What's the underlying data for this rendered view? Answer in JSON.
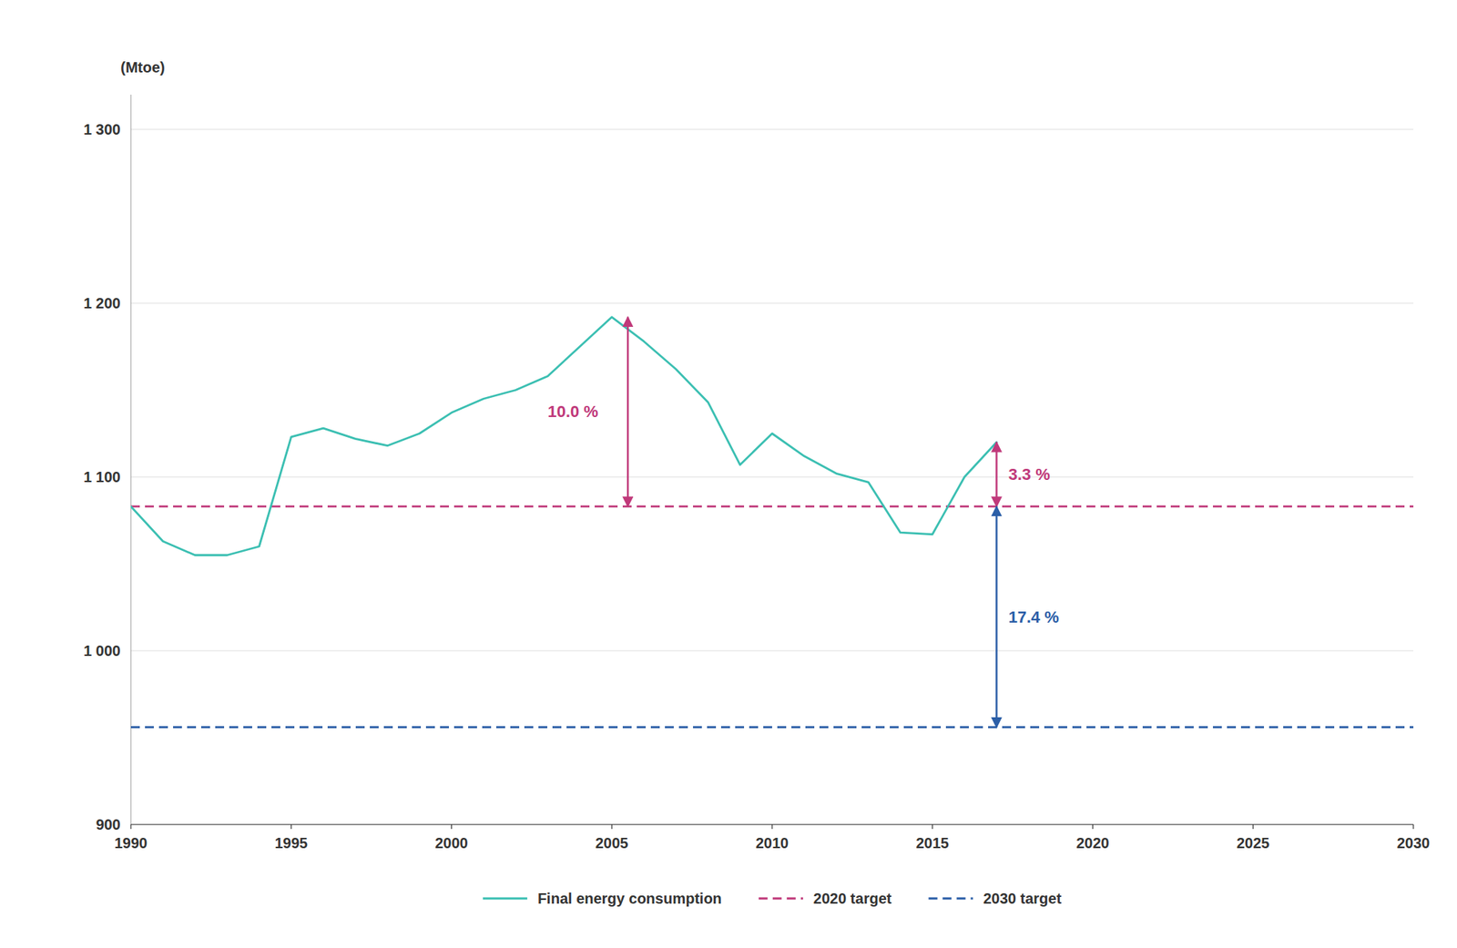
{
  "chart_data": {
    "type": "line",
    "y_label": "(Mtoe)",
    "x": [
      1990,
      1991,
      1992,
      1993,
      1994,
      1995,
      1996,
      1997,
      1998,
      1999,
      2000,
      2001,
      2002,
      2003,
      2004,
      2005,
      2006,
      2007,
      2008,
      2009,
      2010,
      2011,
      2012,
      2013,
      2014,
      2015,
      2016,
      2017
    ],
    "series": [
      {
        "name": "Final energy consumption",
        "color": "#3BBFB2",
        "line_style": "solid",
        "values": [
          1083,
          1063,
          1055,
          1055,
          1060,
          1123,
          1128,
          1122,
          1118,
          1125,
          1137,
          1145,
          1150,
          1158,
          1175,
          1192,
          1178,
          1162,
          1143,
          1107,
          1125,
          1112,
          1102,
          1097,
          1068,
          1067,
          1100,
          1120
        ]
      }
    ],
    "reference_lines": [
      {
        "name": "2020 target",
        "value": 1083,
        "color": "#C0397A",
        "line_style": "dashed"
      },
      {
        "name": "2030 target",
        "value": 956,
        "color": "#2B5EA7",
        "line_style": "dashed"
      }
    ],
    "annotations": [
      {
        "text": "10.0 %",
        "x": 2005.5,
        "y_top": 1192,
        "y_bottom": 1083,
        "color": "#C0397A"
      },
      {
        "text": "3.3 %",
        "x": 2017,
        "y_top": 1120,
        "y_bottom": 1083,
        "color": "#C0397A"
      },
      {
        "text": "17.4 %",
        "x": 2017,
        "y_top": 1083,
        "y_bottom": 956,
        "color": "#2B5EA7"
      }
    ],
    "xlim": [
      1990,
      2030
    ],
    "xticks": [
      1990,
      1995,
      2000,
      2005,
      2010,
      2015,
      2020,
      2025,
      2030
    ],
    "ylim": [
      900,
      1320
    ],
    "yticks": [
      900,
      {
        "value": 1000,
        "label": "1 000"
      },
      {
        "value": 1100,
        "label": "1 100"
      },
      {
        "value": 1200,
        "label": "1 200"
      },
      {
        "value": 1300,
        "label": "1 300"
      }
    ],
    "grid": true,
    "legend": "bottom"
  }
}
